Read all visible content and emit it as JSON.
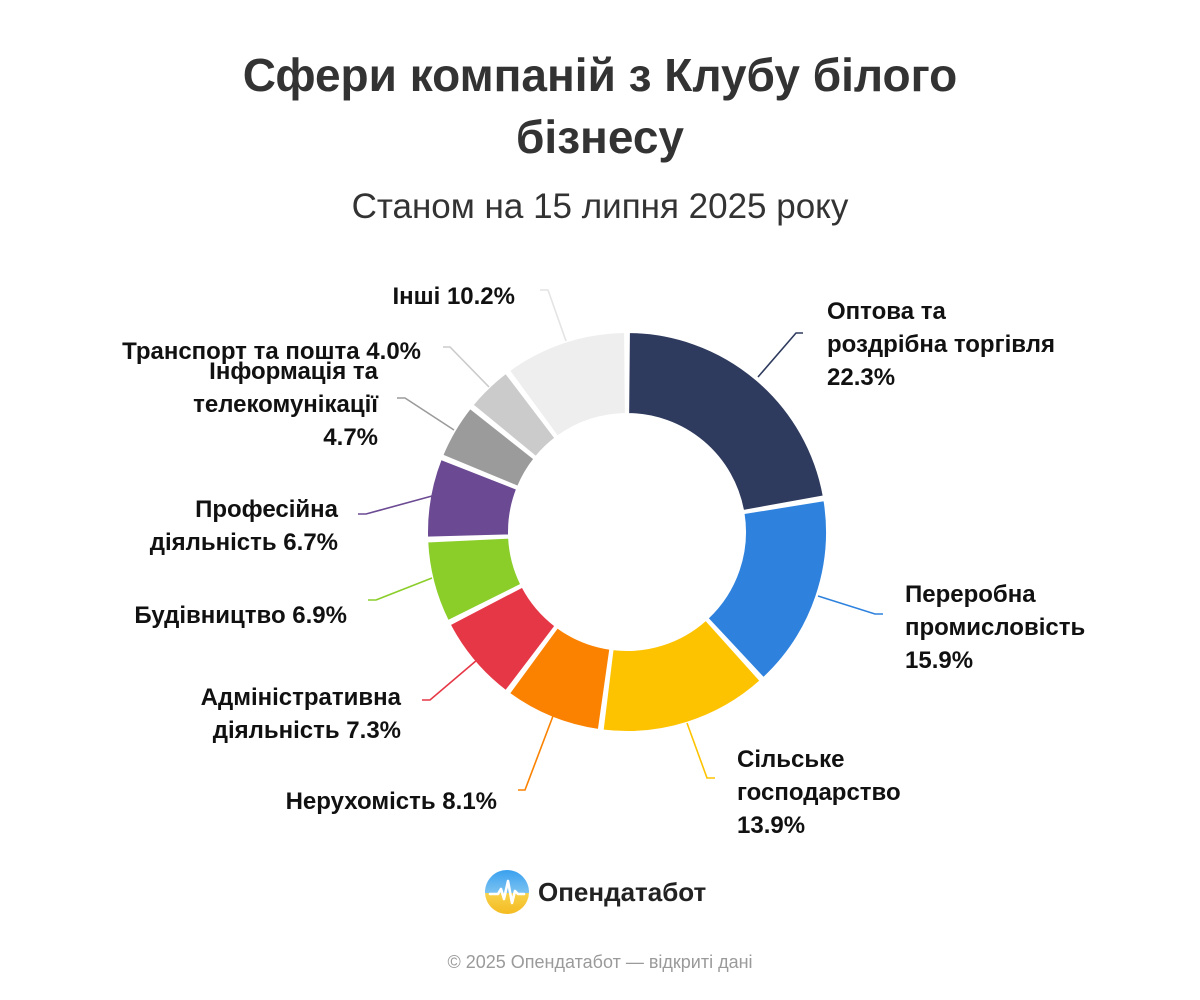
{
  "header": {
    "title": "Сфери компаній з Клубу білого бізнесу",
    "subtitle": "Станом на 15 липня 2025 року"
  },
  "chart_data": {
    "type": "pie",
    "variant": "donut",
    "title": "Сфери компаній з Клубу білого бізнесу",
    "subtitle": "Станом на 15 липня 2025 року",
    "unit": "%",
    "slices": [
      {
        "label": "Оптова та роздрібна торгівля",
        "value": 22.3,
        "color": "#2f3b5e"
      },
      {
        "label": "Переробна промисловість",
        "value": 15.9,
        "color": "#2e82de"
      },
      {
        "label": "Сільське господарство",
        "value": 13.9,
        "color": "#fdc300"
      },
      {
        "label": "Нерухомість",
        "value": 8.1,
        "color": "#fb8200"
      },
      {
        "label": "Адміністративна діяльність",
        "value": 7.3,
        "color": "#e63746"
      },
      {
        "label": "Будівництво",
        "value": 6.9,
        "color": "#8bce2a"
      },
      {
        "label": "Професійна діяльність",
        "value": 6.7,
        "color": "#6b4a93"
      },
      {
        "label": "Інформація та телекомунікації",
        "value": 4.7,
        "color": "#9b9b9b"
      },
      {
        "label": "Транспорт та пошта",
        "value": 4.0,
        "color": "#cbcbcb"
      },
      {
        "label": "Інші",
        "value": 10.2,
        "color": "#eeeeee"
      }
    ],
    "data_labels": [
      [
        "Оптова та",
        "роздрібна торгівля",
        "22.3%"
      ],
      [
        "Переробна",
        "промисловість",
        "15.9%"
      ],
      [
        "Сільське",
        "господарство",
        "13.9%"
      ],
      [
        "Нерухомість 8.1%"
      ],
      [
        "Адміністративна",
        "діяльність 7.3%"
      ],
      [
        "Будівництво 6.9%"
      ],
      [
        "Професійна",
        "діяльність 6.7%"
      ],
      [
        "Інформація та",
        "телекомунікації",
        "4.7%"
      ],
      [
        "Транспорт та пошта 4.0%"
      ],
      [
        "Інші 10.2%"
      ]
    ]
  },
  "branding": {
    "name": "Опендатабот",
    "logo_icon": "opendatabot-logo-icon"
  },
  "footer": {
    "copyright": "© 2025 Опендатабот — відкриті дані"
  }
}
